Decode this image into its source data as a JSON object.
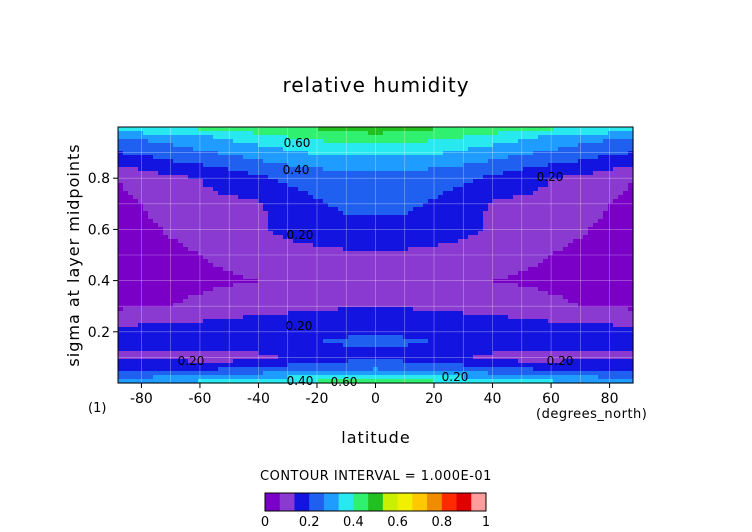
{
  "chart_data": {
    "type": "heatmap",
    "title": "relative humidity",
    "xlabel": "latitude",
    "xunits": "(degrees_north)",
    "ylabel": "sigma at layer midpoints",
    "corner_label": "(1)",
    "xlim": [
      -88,
      88
    ],
    "ylim": [
      0.0,
      1.0
    ],
    "x_ticks": [
      -80,
      -60,
      -40,
      -20,
      0,
      20,
      40,
      60,
      80
    ],
    "y_ticks": [
      0.2,
      0.4,
      0.6,
      0.8
    ],
    "grid": true,
    "contour_interval_label": "CONTOUR INTERVAL = 1.000E-01",
    "contour_labels": [
      "0.60",
      "0.40",
      "0.20",
      "0.20",
      "0.20",
      "0.20",
      "0.20",
      "0.40",
      "0.60",
      "0.20"
    ],
    "latitudes": [
      -88,
      -80,
      -70,
      -60,
      -50,
      -40,
      -30,
      -20,
      -10,
      0,
      10,
      20,
      30,
      40,
      50,
      60,
      70,
      80,
      88
    ],
    "sigma_rows": [
      {
        "sigma": 0.99,
        "values": [
          0.55,
          0.56,
          0.58,
          0.6,
          0.62,
          0.64,
          0.67,
          0.7,
          0.73,
          0.75,
          0.73,
          0.7,
          0.67,
          0.64,
          0.62,
          0.6,
          0.58,
          0.56,
          0.55
        ]
      },
      {
        "sigma": 0.96,
        "values": [
          0.4,
          0.42,
          0.45,
          0.48,
          0.52,
          0.56,
          0.6,
          0.62,
          0.64,
          0.65,
          0.64,
          0.62,
          0.6,
          0.56,
          0.52,
          0.48,
          0.45,
          0.42,
          0.4
        ]
      },
      {
        "sigma": 0.92,
        "values": [
          0.33,
          0.35,
          0.38,
          0.42,
          0.45,
          0.48,
          0.52,
          0.55,
          0.57,
          0.58,
          0.57,
          0.55,
          0.52,
          0.48,
          0.45,
          0.42,
          0.38,
          0.35,
          0.33
        ]
      },
      {
        "sigma": 0.87,
        "values": [
          0.25,
          0.27,
          0.3,
          0.33,
          0.36,
          0.4,
          0.43,
          0.45,
          0.46,
          0.45,
          0.46,
          0.45,
          0.43,
          0.4,
          0.36,
          0.33,
          0.3,
          0.27,
          0.25
        ]
      },
      {
        "sigma": 0.8,
        "values": [
          0.1,
          0.14,
          0.18,
          0.2,
          0.24,
          0.28,
          0.32,
          0.34,
          0.36,
          0.35,
          0.36,
          0.34,
          0.32,
          0.28,
          0.24,
          0.2,
          0.18,
          0.14,
          0.1
        ]
      },
      {
        "sigma": 0.7,
        "values": [
          0.08,
          0.1,
          0.14,
          0.18,
          0.18,
          0.19,
          0.25,
          0.29,
          0.32,
          0.32,
          0.32,
          0.29,
          0.25,
          0.19,
          0.18,
          0.18,
          0.14,
          0.1,
          0.08
        ]
      },
      {
        "sigma": 0.6,
        "values": [
          0.08,
          0.08,
          0.11,
          0.13,
          0.15,
          0.18,
          0.23,
          0.25,
          0.27,
          0.28,
          0.27,
          0.25,
          0.23,
          0.18,
          0.15,
          0.13,
          0.11,
          0.08,
          0.08
        ]
      },
      {
        "sigma": 0.5,
        "values": [
          0.06,
          0.07,
          0.08,
          0.1,
          0.12,
          0.14,
          0.16,
          0.17,
          0.18,
          0.19,
          0.18,
          0.17,
          0.16,
          0.14,
          0.12,
          0.1,
          0.08,
          0.07,
          0.06
        ]
      },
      {
        "sigma": 0.4,
        "values": [
          0.06,
          0.06,
          0.07,
          0.08,
          0.09,
          0.1,
          0.12,
          0.14,
          0.16,
          0.17,
          0.16,
          0.14,
          0.12,
          0.1,
          0.09,
          0.08,
          0.07,
          0.06,
          0.06
        ]
      },
      {
        "sigma": 0.3,
        "values": [
          0.08,
          0.09,
          0.1,
          0.12,
          0.14,
          0.16,
          0.17,
          0.18,
          0.19,
          0.19,
          0.19,
          0.18,
          0.17,
          0.16,
          0.14,
          0.12,
          0.1,
          0.09,
          0.08
        ]
      },
      {
        "sigma": 0.22,
        "values": [
          0.21,
          0.21,
          0.22,
          0.23,
          0.24,
          0.25,
          0.26,
          0.27,
          0.28,
          0.28,
          0.28,
          0.27,
          0.26,
          0.25,
          0.24,
          0.23,
          0.22,
          0.21,
          0.21
        ]
      },
      {
        "sigma": 0.16,
        "values": [
          0.22,
          0.23,
          0.24,
          0.26,
          0.27,
          0.28,
          0.29,
          0.3,
          0.31,
          0.31,
          0.31,
          0.3,
          0.29,
          0.28,
          0.27,
          0.26,
          0.24,
          0.23,
          0.22
        ]
      },
      {
        "sigma": 0.1,
        "values": [
          0.18,
          0.18,
          0.17,
          0.16,
          0.15,
          0.17,
          0.21,
          0.24,
          0.26,
          0.27,
          0.26,
          0.24,
          0.21,
          0.17,
          0.15,
          0.16,
          0.17,
          0.18,
          0.18
        ]
      },
      {
        "sigma": 0.06,
        "values": [
          0.24,
          0.25,
          0.26,
          0.27,
          0.28,
          0.3,
          0.33,
          0.35,
          0.37,
          0.38,
          0.37,
          0.35,
          0.33,
          0.3,
          0.28,
          0.27,
          0.26,
          0.25,
          0.24
        ]
      },
      {
        "sigma": 0.03,
        "values": [
          0.34,
          0.36,
          0.38,
          0.4,
          0.42,
          0.44,
          0.46,
          0.48,
          0.5,
          0.5,
          0.5,
          0.48,
          0.46,
          0.44,
          0.42,
          0.4,
          0.38,
          0.36,
          0.34
        ]
      },
      {
        "sigma": 0.01,
        "values": [
          0.45,
          0.46,
          0.48,
          0.5,
          0.52,
          0.55,
          0.58,
          0.6,
          0.62,
          0.62,
          0.62,
          0.6,
          0.58,
          0.55,
          0.52,
          0.5,
          0.48,
          0.46,
          0.45
        ]
      }
    ],
    "colorbar": {
      "labels": [
        "0",
        "0.2",
        "0.4",
        "0.6",
        "0.8",
        "1"
      ],
      "levels": [
        0,
        0.1,
        0.2,
        0.3,
        0.4,
        0.5,
        0.6,
        0.7,
        0.8,
        0.9,
        1.0
      ],
      "colors": [
        "#7a00c8",
        "#8a3ad0",
        "#1414e0",
        "#2060f0",
        "#1e9cff",
        "#28e8f0",
        "#30f070",
        "#20c020",
        "#c8f000",
        "#f0f000",
        "#ffc800",
        "#f08c00",
        "#ff2a00",
        "#e00000",
        "#ff9c9c"
      ]
    }
  }
}
